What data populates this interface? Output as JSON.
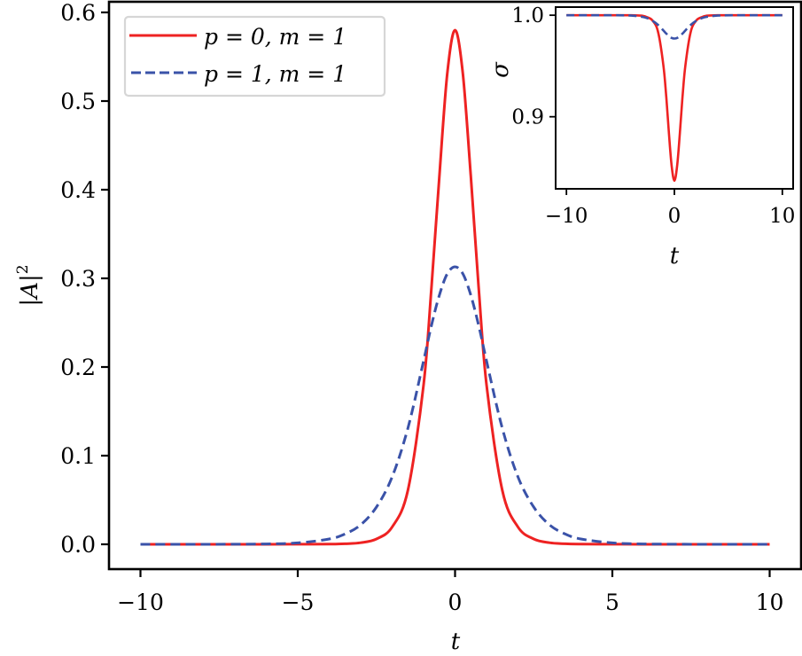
{
  "chart_data": [
    {
      "type": "line",
      "title": "",
      "xlabel": "t",
      "ylabel": "|A|^2",
      "xlim": [
        -11,
        11
      ],
      "ylim": [
        -0.028,
        0.612
      ],
      "xticks": [
        -10,
        -5,
        0,
        5,
        10
      ],
      "xtick_labels": [
        "−10",
        "−5",
        "0",
        "5",
        "10"
      ],
      "yticks": [
        0.0,
        0.1,
        0.2,
        0.3,
        0.4,
        0.5,
        0.6
      ],
      "ytick_labels": [
        "0.0",
        "0.1",
        "0.2",
        "0.3",
        "0.4",
        "0.5",
        "0.6"
      ],
      "grid": false,
      "legend_position": "upper left",
      "x": [
        -10,
        -8,
        -6,
        -5,
        -4,
        -3.5,
        -3,
        -2.5,
        -2,
        -1.5,
        -1,
        -0.75,
        -0.5,
        -0.25,
        0,
        0.25,
        0.5,
        0.75,
        1,
        1.5,
        2,
        2.5,
        3,
        3.5,
        4,
        5,
        6,
        8,
        10
      ],
      "series": [
        {
          "name": "p = 0, m = 1",
          "label_parts": {
            "lhs1": "p",
            "v1": "0",
            "lhs2": "m",
            "v2": "1"
          },
          "color": "#ee2222",
          "style": "solid",
          "values": [
            0,
            0,
            0,
            0.0001,
            0.0002,
            0.0006,
            0.0018,
            0.006,
            0.0195,
            0.061,
            0.18,
            0.29,
            0.415,
            0.53,
            0.58,
            0.53,
            0.415,
            0.29,
            0.18,
            0.061,
            0.0195,
            0.006,
            0.0018,
            0.0006,
            0.0002,
            0.0001,
            0,
            0,
            0
          ]
        },
        {
          "name": "p = 1, m = 1",
          "label_parts": {
            "lhs1": "p",
            "v1": "1",
            "lhs2": "m",
            "v2": "1"
          },
          "color": "#3a52a8",
          "style": "dashed",
          "values": [
            0,
            0,
            0.0004,
            0.0016,
            0.006,
            0.0116,
            0.022,
            0.042,
            0.076,
            0.131,
            0.207,
            0.247,
            0.281,
            0.305,
            0.313,
            0.305,
            0.281,
            0.247,
            0.207,
            0.131,
            0.076,
            0.042,
            0.022,
            0.0116,
            0.006,
            0.0016,
            0.0004,
            0,
            0
          ]
        }
      ]
    },
    {
      "type": "line",
      "title": "inset",
      "xlabel": "t",
      "ylabel": "σ",
      "xlim": [
        -11,
        11
      ],
      "ylim": [
        0.829,
        1.008
      ],
      "xticks": [
        -10,
        0,
        10
      ],
      "xtick_labels": [
        "−10",
        "0",
        "10"
      ],
      "yticks": [
        0.9,
        1.0
      ],
      "ytick_labels": [
        "0.9",
        "1.0"
      ],
      "grid": false,
      "x": [
        -10,
        -6,
        -4,
        -3,
        -2.5,
        -2,
        -1.5,
        -1,
        -0.75,
        -0.5,
        -0.25,
        0,
        0.25,
        0.5,
        0.75,
        1,
        1.5,
        2,
        2.5,
        3,
        4,
        6,
        10
      ],
      "series": [
        {
          "name": "p = 0, m = 1",
          "color": "#ee2222",
          "style": "solid",
          "values": [
            1.0,
            1.0,
            1.0,
            0.9995,
            0.998,
            0.9945,
            0.983,
            0.949,
            0.919,
            0.883,
            0.851,
            0.837,
            0.851,
            0.883,
            0.919,
            0.949,
            0.983,
            0.9945,
            0.998,
            0.9995,
            1.0,
            1.0,
            1.0
          ]
        },
        {
          "name": "p = 1, m = 1",
          "color": "#3a52a8",
          "style": "dashed",
          "values": [
            1.0,
            1.0,
            0.9996,
            0.9984,
            0.997,
            0.9944,
            0.9904,
            0.9848,
            0.9819,
            0.9794,
            0.9776,
            0.977,
            0.9776,
            0.9794,
            0.9819,
            0.9848,
            0.9904,
            0.9944,
            0.997,
            0.9984,
            0.9996,
            1.0,
            1.0
          ]
        }
      ]
    }
  ],
  "main": {
    "xlabel": "t",
    "ylabel_base": "|A|",
    "ylabel_sup": "2"
  },
  "inset": {
    "xlabel": "t",
    "ylabel": "σ"
  },
  "legend": {
    "items": [
      {
        "text": "p = 0, m = 1",
        "color": "#ee2222",
        "style": "solid"
      },
      {
        "text": "p = 1, m = 1",
        "color": "#3a52a8",
        "style": "dashed"
      }
    ]
  }
}
